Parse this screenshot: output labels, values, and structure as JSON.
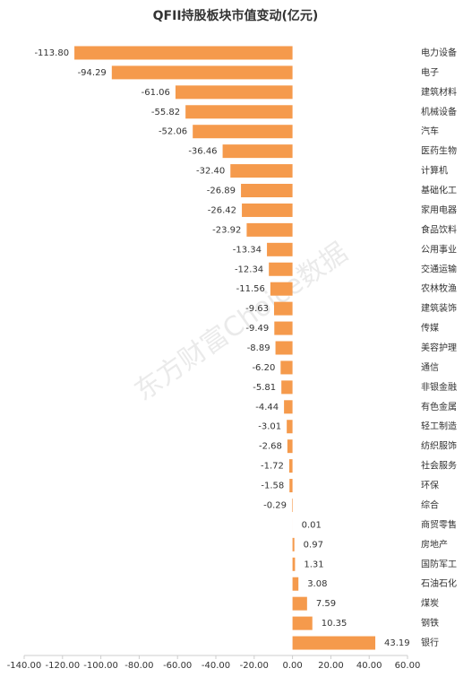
{
  "chart_data": {
    "type": "barh",
    "title": "QFII持股板块市值变动(亿元)",
    "watermark": "东方财富Choice数据",
    "color": "#f59a4c",
    "categories": [
      "电力设备",
      "电子",
      "建筑材料",
      "机械设备",
      "汽车",
      "医药生物",
      "计算机",
      "基础化工",
      "家用电器",
      "食品饮料",
      "公用事业",
      "交通运输",
      "农林牧渔",
      "建筑装饰",
      "传媒",
      "美容护理",
      "通信",
      "非银金融",
      "有色金属",
      "轻工制造",
      "纺织服饰",
      "社会服务",
      "环保",
      "综合",
      "商贸零售",
      "房地产",
      "国防军工",
      "石油石化",
      "煤炭",
      "钢铁",
      "银行"
    ],
    "values": [
      -113.8,
      -94.29,
      -61.06,
      -55.82,
      -52.06,
      -36.46,
      -32.4,
      -26.89,
      -26.42,
      -23.92,
      -13.34,
      -12.34,
      -11.56,
      -9.63,
      -9.49,
      -8.89,
      -6.2,
      -5.81,
      -4.44,
      -3.01,
      -2.68,
      -1.72,
      -1.58,
      -0.29,
      0.01,
      0.97,
      1.31,
      3.08,
      7.59,
      10.35,
      43.19
    ],
    "value_labels": [
      "-113.80",
      "-94.29",
      "-61.06",
      "-55.82",
      "-52.06",
      "-36.46",
      "-32.40",
      "-26.89",
      "-26.42",
      "-23.92",
      "-13.34",
      "-12.34",
      "-11.56",
      "-9.63",
      "-9.49",
      "-8.89",
      "-6.20",
      "-5.81",
      "-4.44",
      "-3.01",
      "-2.68",
      "-1.72",
      "-1.58",
      "-0.29",
      "0.01",
      "0.97",
      "1.31",
      "3.08",
      "7.59",
      "10.35",
      "43.19"
    ],
    "xlim": [
      -140,
      60
    ],
    "xticks": [
      {
        "value": -140,
        "label": "-140.00"
      },
      {
        "value": -120,
        "label": "-120.00"
      },
      {
        "value": -100,
        "label": "-100.00"
      },
      {
        "value": -80,
        "label": "-80.00"
      },
      {
        "value": -60,
        "label": "-60.00"
      },
      {
        "value": -40,
        "label": "-40.00"
      },
      {
        "value": -20,
        "label": "-20.00"
      },
      {
        "value": 0,
        "label": "0.00"
      },
      {
        "value": 20,
        "label": "20.00"
      },
      {
        "value": 40,
        "label": "40.00"
      },
      {
        "value": 60,
        "label": "60.00"
      }
    ]
  }
}
